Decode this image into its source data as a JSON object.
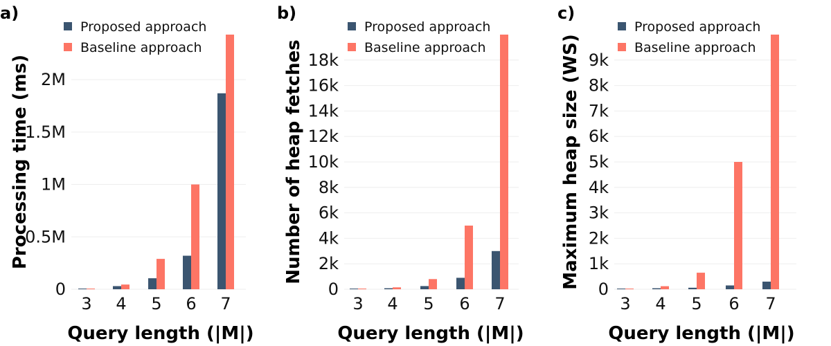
{
  "colors": {
    "proposed": "#3b5570",
    "baseline": "#fd7565"
  },
  "chart_data": [
    {
      "panel": "a)",
      "type": "bar",
      "xlabel": "Query length (|M|)",
      "ylabel": "Processing time (ms)",
      "categories": [
        "3",
        "4",
        "5",
        "6",
        "7"
      ],
      "ylim": [
        0,
        2430000
      ],
      "yticks": [
        0,
        500000,
        1000000,
        1500000,
        2000000
      ],
      "ytick_labels": [
        "0",
        "0.5M",
        "1M",
        "1.5M",
        "2M"
      ],
      "legend": "top-left",
      "grid": true,
      "series": [
        {
          "name": "Proposed approach",
          "values": [
            4000,
            30000,
            105000,
            320000,
            1870000
          ]
        },
        {
          "name": "Baseline approach",
          "values": [
            4000,
            45000,
            290000,
            1000000,
            2430000
          ]
        }
      ]
    },
    {
      "panel": "b)",
      "type": "bar",
      "xlabel": "Query length (|M|)",
      "ylabel": "Number of heap fetches",
      "categories": [
        "3",
        "4",
        "5",
        "6",
        "7"
      ],
      "ylim": [
        0,
        20000
      ],
      "yticks": [
        0,
        2000,
        4000,
        6000,
        8000,
        10000,
        12000,
        14000,
        16000,
        18000
      ],
      "ytick_labels": [
        "0",
        "2k",
        "4k",
        "6k",
        "8k",
        "10k",
        "12k",
        "14k",
        "16k",
        "18k"
      ],
      "legend": "top-left",
      "grid": true,
      "series": [
        {
          "name": "Proposed approach",
          "values": [
            30,
            80,
            250,
            900,
            3000
          ]
        },
        {
          "name": "Baseline approach",
          "values": [
            40,
            150,
            800,
            5000,
            20000
          ]
        }
      ]
    },
    {
      "panel": "c)",
      "type": "bar",
      "xlabel": "Query length (|M|)",
      "ylabel": "Maximum heap size (WS)",
      "categories": [
        "3",
        "4",
        "5",
        "6",
        "7"
      ],
      "ylim": [
        0,
        10000
      ],
      "yticks": [
        0,
        1000,
        2000,
        3000,
        4000,
        5000,
        6000,
        7000,
        8000,
        9000
      ],
      "ytick_labels": [
        "0",
        "1k",
        "2k",
        "3k",
        "4k",
        "5k",
        "6k",
        "7k",
        "8k",
        "9k"
      ],
      "legend": "top-left",
      "grid": true,
      "series": [
        {
          "name": "Proposed approach",
          "values": [
            20,
            40,
            60,
            150,
            300
          ]
        },
        {
          "name": "Baseline approach",
          "values": [
            20,
            120,
            650,
            5000,
            10000
          ]
        }
      ]
    }
  ]
}
